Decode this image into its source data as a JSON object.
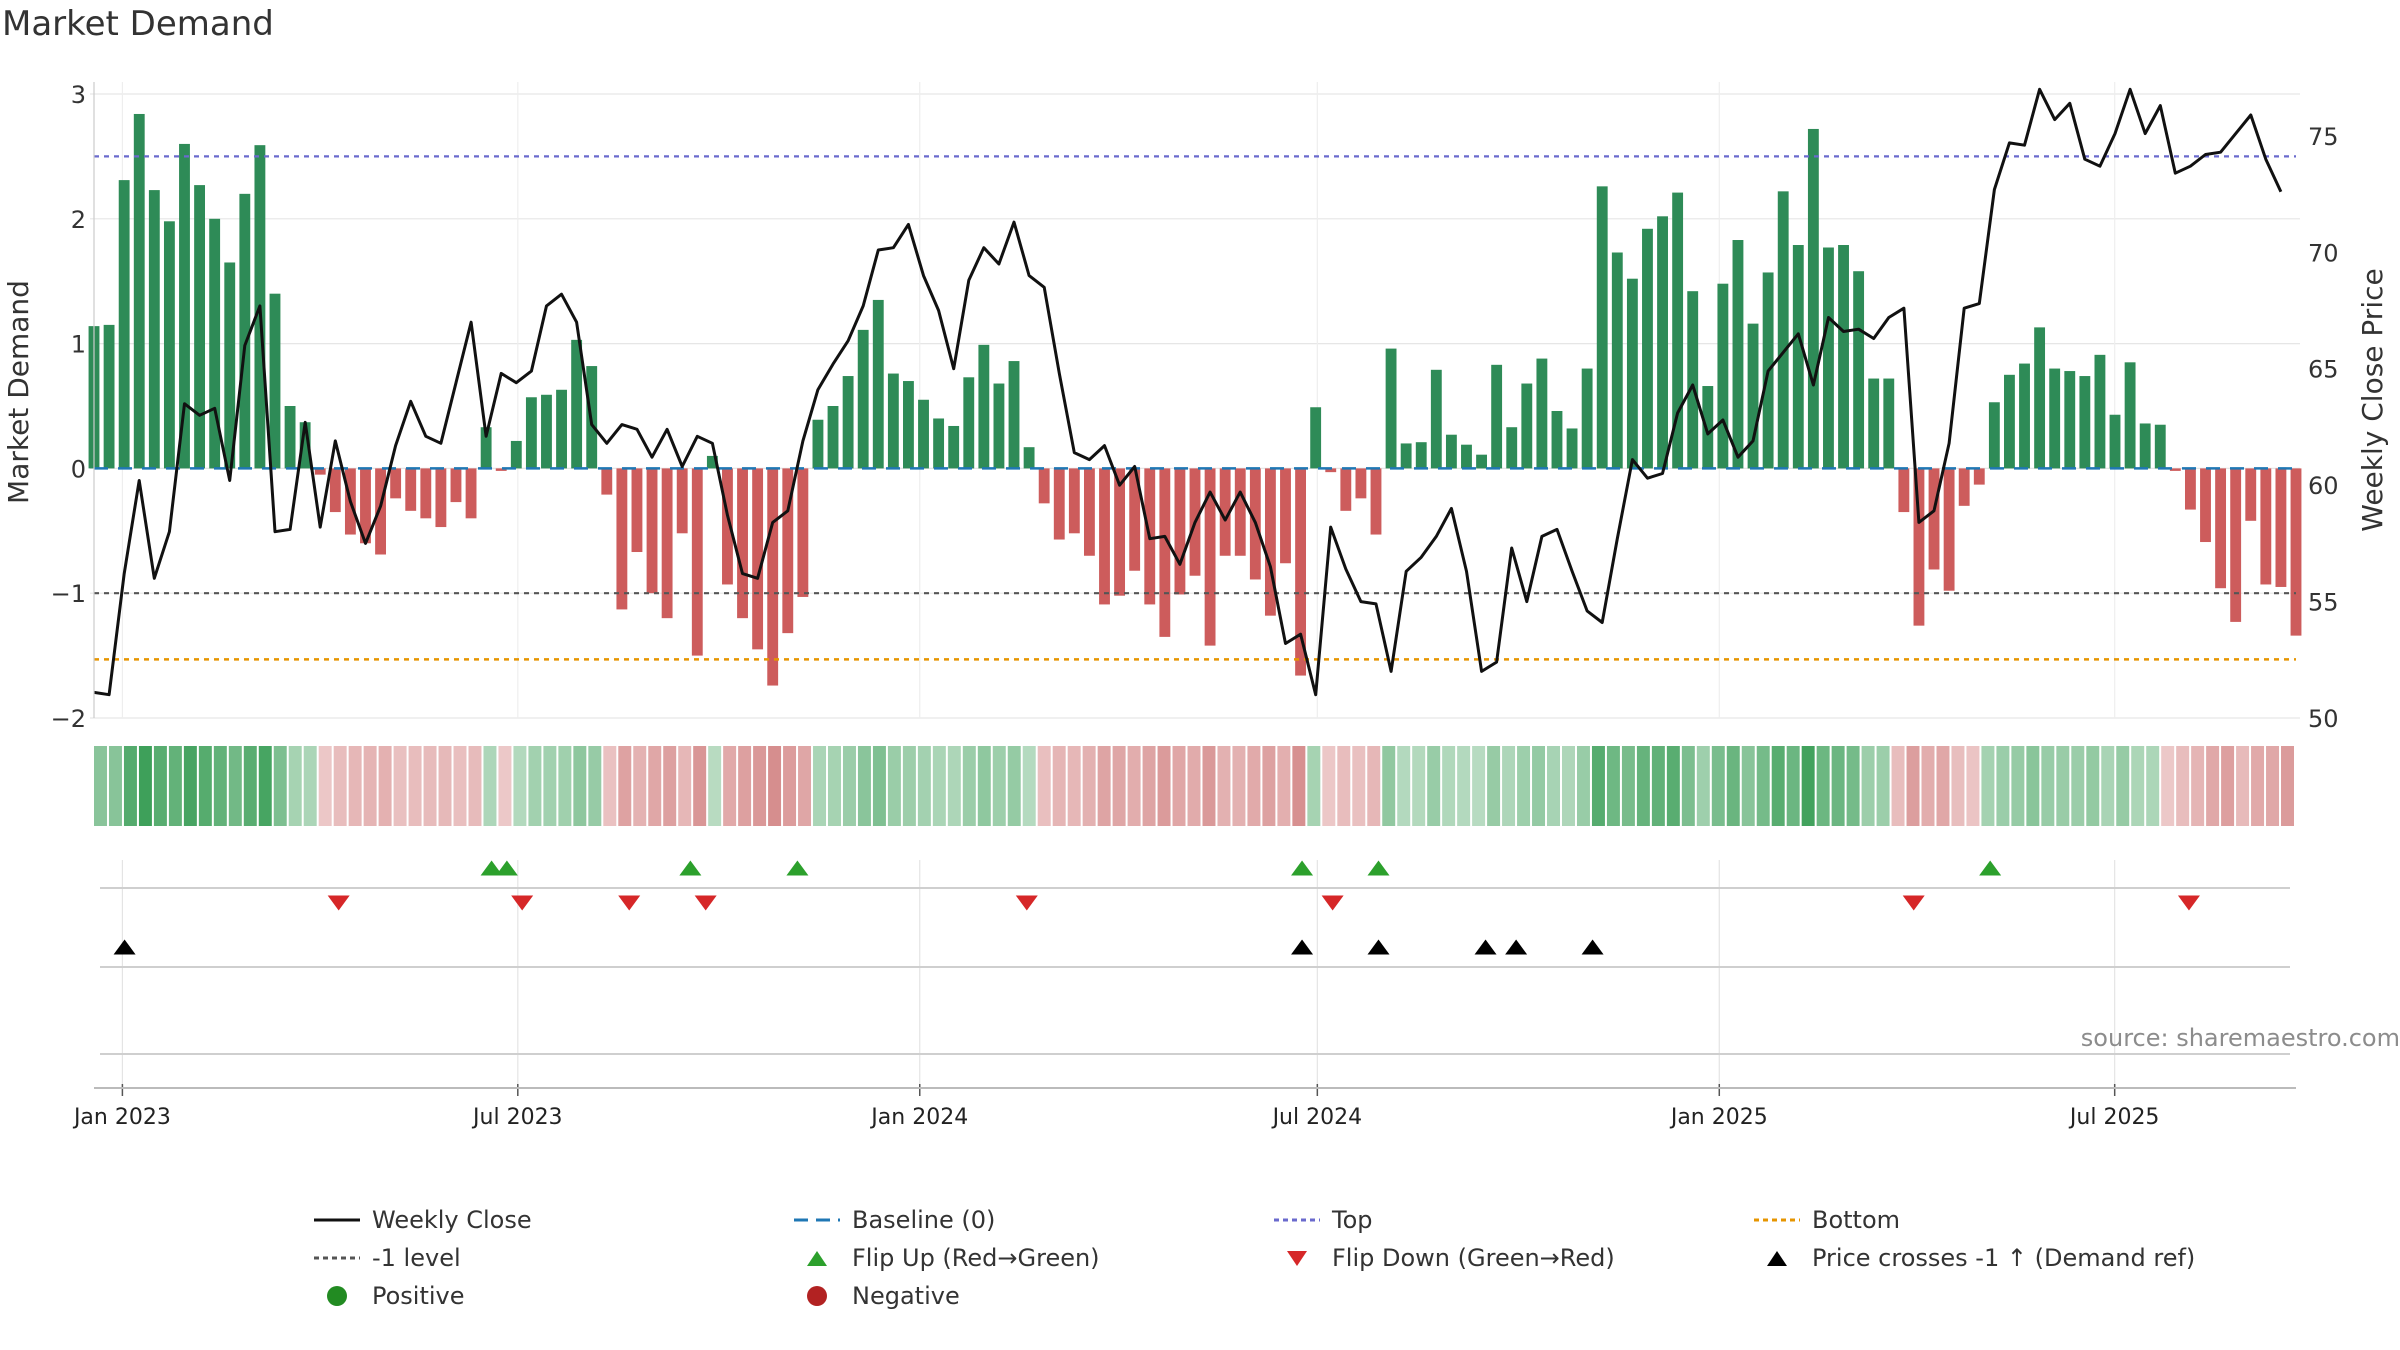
{
  "title": "Market Demand",
  "source": "source: sharemaestro.com",
  "colors": {
    "positive_bar": "#2e8b57",
    "negative_bar": "#cd5c5c",
    "price_line": "#111111",
    "baseline": "#1f77b4",
    "top": "#6a6acd",
    "minus1": "#555555",
    "bottom": "#e69500",
    "flip_up": "#2ca02c",
    "flip_down": "#d62728",
    "cross": "#000000",
    "positive_dot": "#228b22",
    "negative_dot": "#b22222"
  },
  "legend": [
    {
      "label": "Weekly Close",
      "kind": "line",
      "color": "#111111"
    },
    {
      "label": "Baseline (0)",
      "kind": "dashed",
      "color": "#1f77b4"
    },
    {
      "label": "Top",
      "kind": "dotted",
      "color": "#6a6acd"
    },
    {
      "label": "Bottom",
      "kind": "dotted",
      "color": "#e69500"
    },
    {
      "label": "-1 level",
      "kind": "dotted",
      "color": "#555555"
    },
    {
      "label": "Flip Up (Red→Green)",
      "kind": "tri-up",
      "color": "#2ca02c"
    },
    {
      "label": "Flip Down (Green→Red)",
      "kind": "tri-down",
      "color": "#d62728"
    },
    {
      "label": "Price crosses -1 ↑ (Demand ref)",
      "kind": "tri-up",
      "color": "#000000"
    },
    {
      "label": "Positive",
      "kind": "dot",
      "color": "#228b22"
    },
    {
      "label": "Negative",
      "kind": "dot",
      "color": "#b22222"
    }
  ],
  "chart_data": {
    "type": "bar",
    "title": "Market Demand",
    "ylabel": "Market Demand",
    "y2label": "Weekly Close Price",
    "ylim": [
      -2,
      3
    ],
    "y2lim": [
      50,
      76.8
    ],
    "yticks": [
      "3",
      "2",
      "1",
      "0",
      "−1",
      "−2"
    ],
    "y2ticks": [
      "75",
      "70",
      "65",
      "60",
      "55",
      "50"
    ],
    "x_start": "2022-12-19",
    "x_end": "2025-09-22",
    "xticks": [
      {
        "label": "Jan 2023",
        "date": "2023-01-01"
      },
      {
        "label": "Jul 2023",
        "date": "2023-07-01"
      },
      {
        "label": "Jan 2024",
        "date": "2024-01-01"
      },
      {
        "label": "Jul 2024",
        "date": "2024-07-01"
      },
      {
        "label": "Jan 2025",
        "date": "2025-01-01"
      },
      {
        "label": "Jul 2025",
        "date": "2025-07-01"
      }
    ],
    "reference_lines": {
      "baseline": 0,
      "top": 2.5,
      "minus1": -1,
      "bottom": -1.53
    },
    "demand": [
      1.14,
      1.15,
      2.31,
      2.84,
      2.23,
      1.98,
      2.6,
      2.27,
      2.0,
      1.65,
      2.2,
      2.59,
      1.4,
      0.5,
      0.37,
      -0.05,
      -0.35,
      -0.53,
      -0.6,
      -0.69,
      -0.24,
      -0.34,
      -0.4,
      -0.47,
      -0.27,
      -0.4,
      0.33,
      -0.02,
      0.22,
      0.57,
      0.59,
      0.63,
      1.03,
      0.82,
      -0.21,
      -1.13,
      -0.67,
      -1.0,
      -1.2,
      -0.52,
      -1.5,
      0.1,
      -0.93,
      -1.2,
      -1.45,
      -1.74,
      -1.32,
      -1.03,
      0.39,
      0.5,
      0.74,
      1.11,
      1.35,
      0.76,
      0.7,
      0.55,
      0.4,
      0.34,
      0.73,
      0.99,
      0.68,
      0.86,
      0.17,
      -0.28,
      -0.57,
      -0.52,
      -0.7,
      -1.09,
      -1.02,
      -0.82,
      -1.09,
      -1.35,
      -1.01,
      -0.86,
      -1.42,
      -0.7,
      -0.7,
      -0.89,
      -1.18,
      -0.76,
      -1.66,
      0.49,
      -0.03,
      -0.34,
      -0.24,
      -0.53,
      0.96,
      0.2,
      0.21,
      0.79,
      0.27,
      0.19,
      0.11,
      0.83,
      0.33,
      0.68,
      0.88,
      0.46,
      0.32,
      0.8,
      2.26,
      1.73,
      1.52,
      1.92,
      2.02,
      2.21,
      1.42,
      0.66,
      1.48,
      1.83,
      1.16,
      1.57,
      2.22,
      1.79,
      2.72,
      1.77,
      1.79,
      1.58,
      0.72,
      0.72,
      -0.35,
      -1.26,
      -0.81,
      -0.98,
      -0.3,
      -0.13,
      0.53,
      0.75,
      0.84,
      1.13,
      0.8,
      0.78,
      0.74,
      0.91,
      0.43,
      0.85,
      0.36,
      0.35,
      -0.02,
      -0.33,
      -0.59,
      -0.96,
      -1.23,
      -0.42,
      -0.93,
      -0.95,
      -1.34
    ],
    "close": [
      51.1,
      51.0,
      56.2,
      60.2,
      56.0,
      58.0,
      63.5,
      63.0,
      63.3,
      60.2,
      66.0,
      67.7,
      58.0,
      58.1,
      62.7,
      58.2,
      61.9,
      59.3,
      57.5,
      59.1,
      61.7,
      63.6,
      62.1,
      61.8,
      64.4,
      67.0,
      62.1,
      64.8,
      64.4,
      64.9,
      67.7,
      68.2,
      67.0,
      62.6,
      61.8,
      62.6,
      62.4,
      61.2,
      62.4,
      60.8,
      62.1,
      61.8,
      58.7,
      56.2,
      56.0,
      58.4,
      58.9,
      61.9,
      64.1,
      65.2,
      66.2,
      67.7,
      70.1,
      70.2,
      71.2,
      69.0,
      67.5,
      65.0,
      68.8,
      70.2,
      69.5,
      71.3,
      69.0,
      68.5,
      64.8,
      61.4,
      61.1,
      61.7,
      60.0,
      60.8,
      57.7,
      57.8,
      56.6,
      58.4,
      59.7,
      58.5,
      59.7,
      58.4,
      56.5,
      53.2,
      53.6,
      51.0,
      58.2,
      56.4,
      55.0,
      54.9,
      52.0,
      56.3,
      56.9,
      57.8,
      59.0,
      56.3,
      52.0,
      52.4,
      57.3,
      55.0,
      57.8,
      58.1,
      56.3,
      54.6,
      54.1,
      57.7,
      61.1,
      60.3,
      60.5,
      63.1,
      64.3,
      62.2,
      62.8,
      61.2,
      61.9,
      64.9,
      65.7,
      66.5,
      64.3,
      67.2,
      66.6,
      66.7,
      66.3,
      67.2,
      67.6,
      58.4,
      58.9,
      61.8,
      67.6,
      67.8,
      72.7,
      74.7,
      74.6,
      77.0,
      75.7,
      76.4,
      74.0,
      73.7,
      75.1,
      77.0,
      75.1,
      76.3,
      73.4,
      73.7,
      74.2,
      74.3,
      75.1,
      75.9,
      74.0,
      72.6
    ],
    "flip_up": [
      "2023-06-19",
      "2023-06-26",
      "2023-09-18",
      "2023-11-06",
      "2024-06-24",
      "2024-07-29",
      "2025-05-05"
    ],
    "flip_down": [
      "2023-04-10",
      "2023-07-03",
      "2023-08-21",
      "2023-09-25",
      "2024-02-19",
      "2024-07-08",
      "2025-03-31",
      "2025-08-04"
    ],
    "price_crosses": [
      "2023-01-02",
      "2024-06-24",
      "2024-07-29",
      "2024-09-16",
      "2024-09-30",
      "2024-11-04"
    ]
  }
}
